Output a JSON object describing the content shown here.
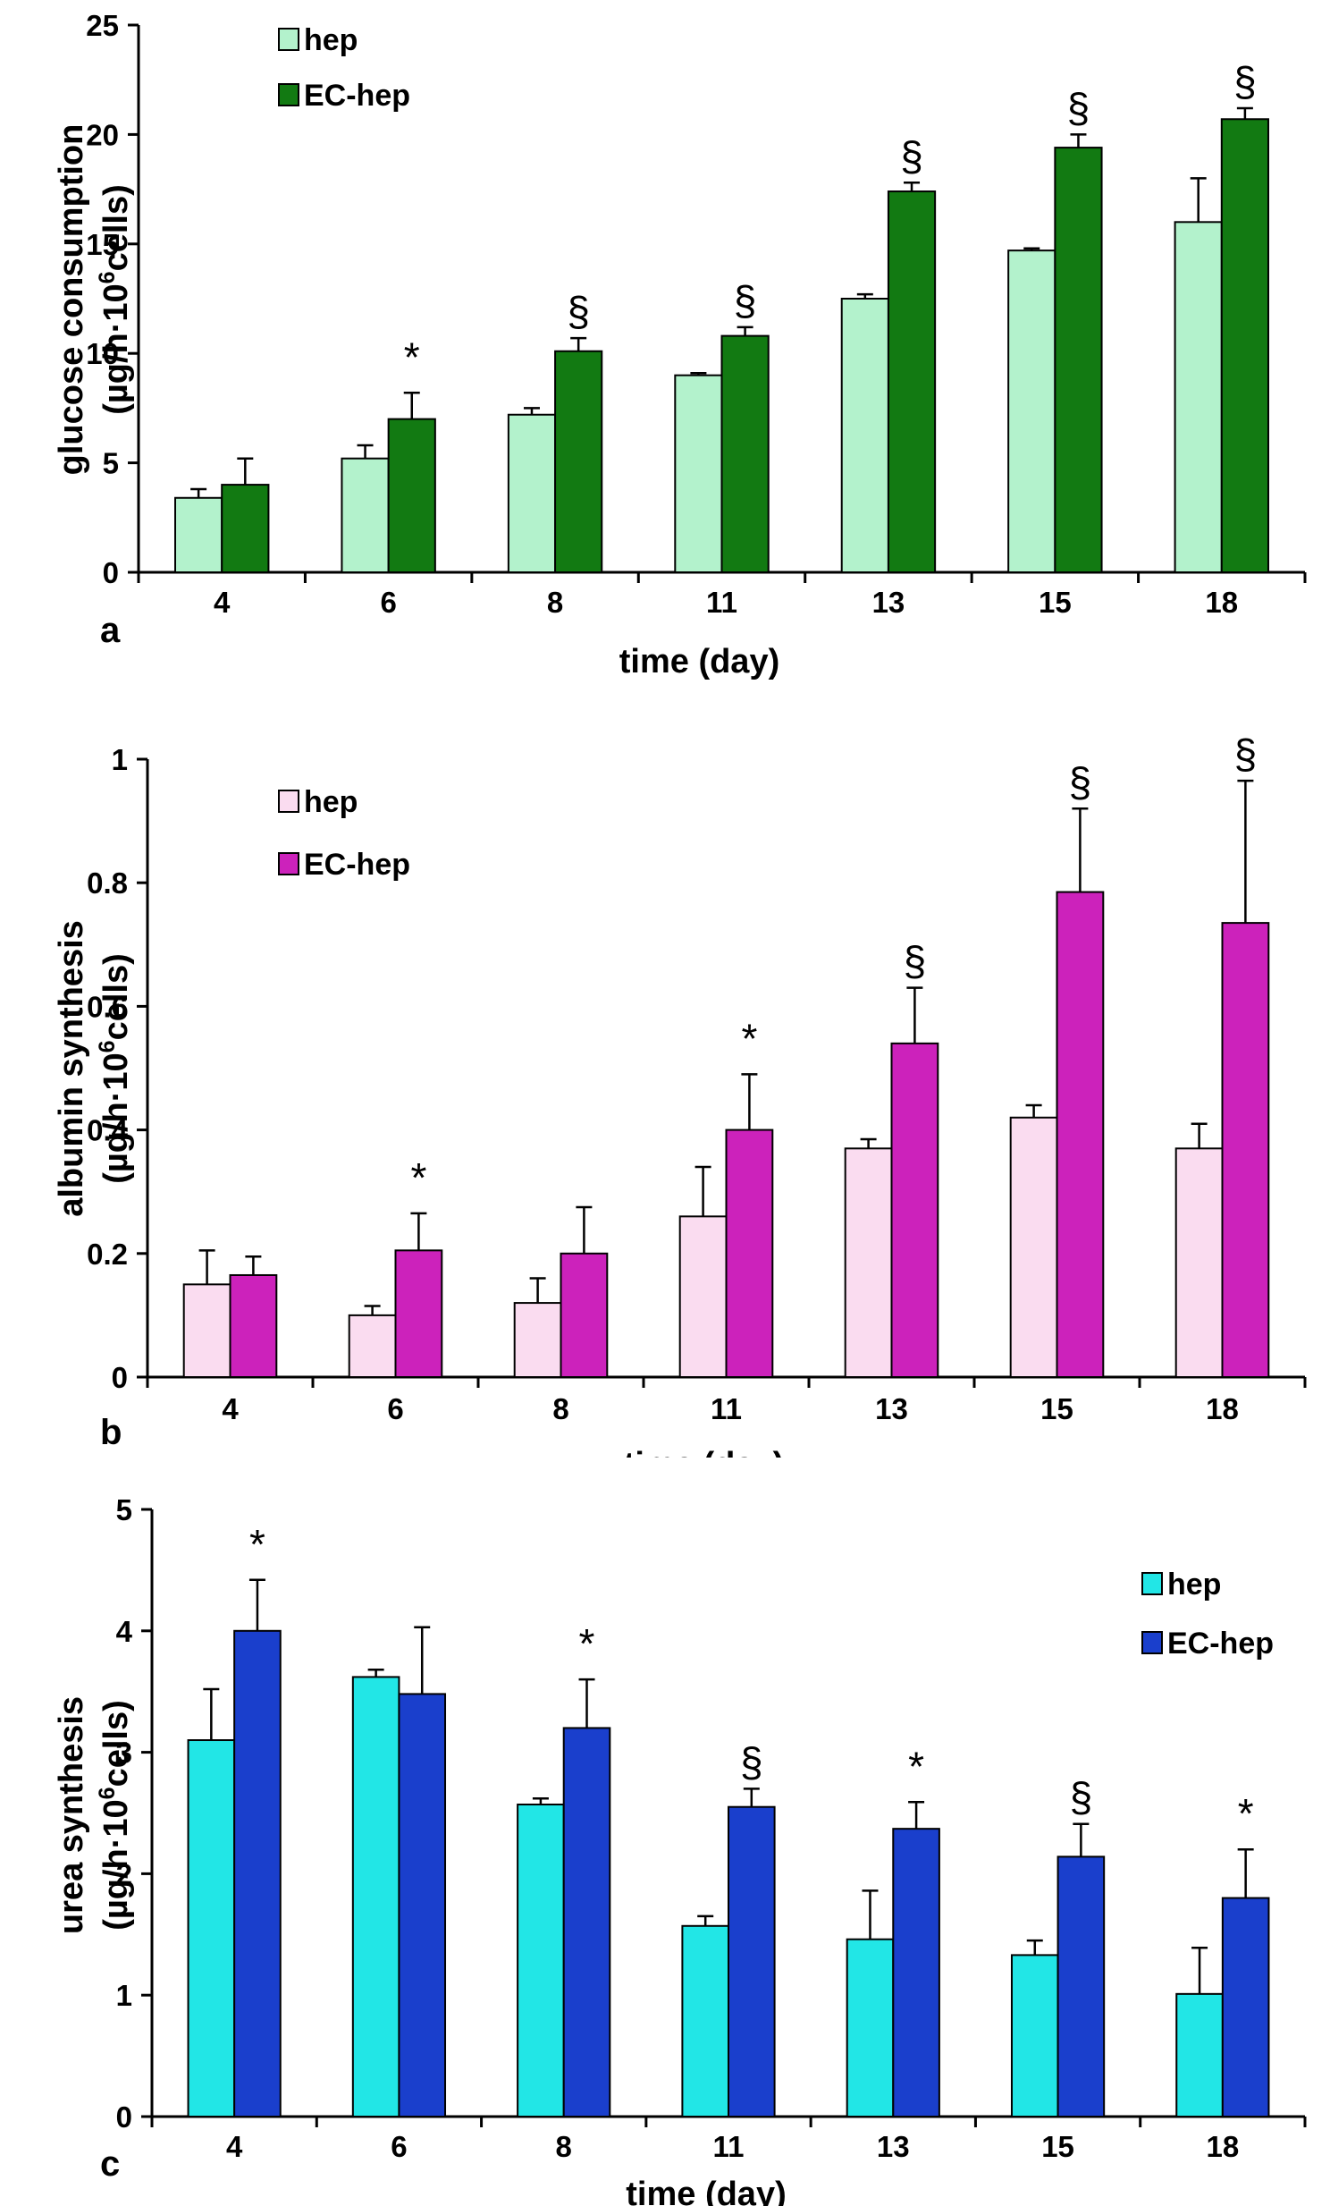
{
  "chart_data": [
    {
      "id": "a",
      "type": "bar",
      "panel_label": "a",
      "xlabel": "time (day)",
      "ylabel_line1": "glucose consumption",
      "ylabel_line2_prefix": "(µg/h·10",
      "ylabel_sup": "6",
      "ylabel_line2_suffix": "cells)",
      "ylim": [
        0,
        25
      ],
      "yticks": [
        0,
        5,
        10,
        15,
        20,
        25
      ],
      "categories": [
        "4",
        "6",
        "8",
        "11",
        "13",
        "15",
        "18"
      ],
      "legend_position": "top-left",
      "series": [
        {
          "name": "hep",
          "color": "#b3f2cc",
          "values": [
            3.4,
            5.2,
            7.2,
            9.0,
            12.5,
            14.7,
            16.0
          ],
          "errors": [
            0.4,
            0.6,
            0.3,
            0.1,
            0.2,
            0.1,
            2.0
          ]
        },
        {
          "name": "EC-hep",
          "color": "#127a12",
          "values": [
            4.0,
            7.0,
            10.1,
            10.8,
            17.4,
            19.4,
            20.7
          ],
          "errors": [
            1.2,
            1.2,
            0.6,
            0.4,
            0.4,
            0.6,
            0.5
          ]
        }
      ],
      "annotations": [
        "",
        "*",
        "§",
        "§",
        "§",
        "§",
        "§"
      ]
    },
    {
      "id": "b",
      "type": "bar",
      "panel_label": "b",
      "xlabel": "time (day)",
      "ylabel_line1": "albumin synthesis",
      "ylabel_line2_prefix": "(µg/h·10",
      "ylabel_sup": "6",
      "ylabel_line2_suffix": "cells)",
      "ylim": [
        0,
        1
      ],
      "yticks": [
        0,
        0.2,
        0.4,
        0.6,
        0.8,
        1
      ],
      "ytick_labels": [
        "0",
        "0.2",
        "0.4",
        "0.6",
        "0.8",
        "1"
      ],
      "categories": [
        "4",
        "6",
        "8",
        "11",
        "13",
        "15",
        "18"
      ],
      "legend_position": "top-left",
      "series": [
        {
          "name": "hep",
          "color": "#fadcf0",
          "values": [
            0.15,
            0.1,
            0.12,
            0.26,
            0.37,
            0.42,
            0.37
          ],
          "errors": [
            0.055,
            0.015,
            0.04,
            0.08,
            0.015,
            0.02,
            0.04
          ]
        },
        {
          "name": "EC-hep",
          "color": "#cc22bb",
          "values": [
            0.165,
            0.205,
            0.2,
            0.4,
            0.54,
            0.785,
            0.735
          ],
          "errors": [
            0.03,
            0.06,
            0.075,
            0.09,
            0.09,
            0.135,
            0.23
          ]
        }
      ],
      "annotations": [
        "",
        "*",
        "",
        "*",
        "§",
        "§",
        "§"
      ]
    },
    {
      "id": "c",
      "type": "bar",
      "panel_label": "c",
      "xlabel": "time (day)",
      "ylabel_line1": "urea synthesis",
      "ylabel_line2_prefix": "(µg/h·10",
      "ylabel_sup": "6",
      "ylabel_line2_suffix": "cells)",
      "ylim": [
        0,
        5
      ],
      "yticks": [
        0,
        1,
        2,
        3,
        4,
        5
      ],
      "categories": [
        "4",
        "6",
        "8",
        "11",
        "13",
        "15",
        "18"
      ],
      "legend_position": "top-right",
      "series": [
        {
          "name": "hep",
          "color": "#22e6e6",
          "values": [
            3.1,
            3.62,
            2.57,
            1.57,
            1.46,
            1.33,
            1.01
          ],
          "errors": [
            0.42,
            0.06,
            0.05,
            0.08,
            0.4,
            0.12,
            0.38
          ]
        },
        {
          "name": "EC-hep",
          "color": "#1a3fcc",
          "values": [
            4.0,
            3.48,
            3.2,
            2.55,
            2.37,
            2.14,
            1.8
          ],
          "errors": [
            0.42,
            0.55,
            0.4,
            0.15,
            0.22,
            0.27,
            0.4
          ]
        }
      ],
      "annotations": [
        "*",
        "",
        "*",
        "§",
        "*",
        "§",
        "*"
      ]
    }
  ]
}
